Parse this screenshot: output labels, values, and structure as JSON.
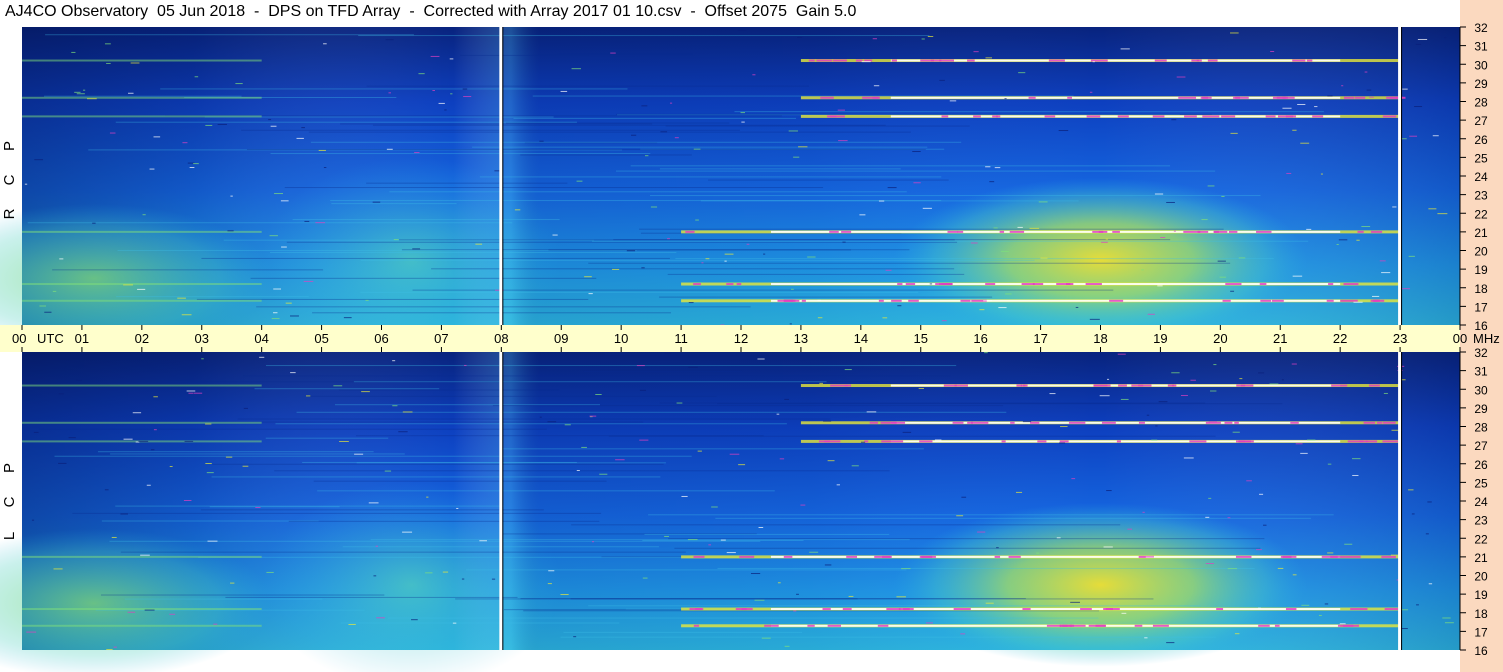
{
  "title": "AJ4CO Observatory  05 Jun 2018  -  DPS on TFD Array  -  Corrected with Array 2017 01 10.csv  -  Offset 2075  Gain 5.0",
  "colors": {
    "band_bg": "#ffffcc",
    "right_strip": "#fbd9bf",
    "deep": "#0a1f7a",
    "blue": "#0a4fd8",
    "cyan": "#22b4e0",
    "green": "#7fe07a",
    "yellow": "#e8e83a",
    "white": "#ffffff",
    "magenta": "#e040c0"
  },
  "chart_data": [
    {
      "type": "heatmap",
      "panel": "top",
      "ylabel": "R C P",
      "x_unit": "UTC",
      "y_unit": "MHz",
      "xlim": [
        0,
        24
      ],
      "ylim": [
        16,
        32
      ],
      "x_ticks": [
        "00",
        "01",
        "02",
        "03",
        "04",
        "05",
        "06",
        "07",
        "08",
        "09",
        "10",
        "11",
        "12",
        "13",
        "14",
        "15",
        "16",
        "17",
        "18",
        "19",
        "20",
        "21",
        "22",
        "23",
        "00"
      ],
      "y_ticks": [
        "32",
        "31",
        "30",
        "29",
        "28",
        "27",
        "26",
        "25",
        "24",
        "23",
        "22",
        "21",
        "20",
        "19",
        "18",
        "17",
        "16"
      ],
      "marker_times": [
        8,
        23
      ],
      "strong_bands_mhz": [
        27.2,
        28.2,
        30.2,
        18.2,
        17.3,
        21.0
      ],
      "peak_region": {
        "x": [
          16.5,
          19.5
        ],
        "y": [
          17.5,
          21.5
        ]
      }
    },
    {
      "type": "heatmap",
      "panel": "bottom",
      "ylabel": "L C P",
      "x_unit": "UTC",
      "y_unit": "MHz",
      "xlim": [
        0,
        24
      ],
      "ylim": [
        16,
        32
      ],
      "x_ticks": [
        "00",
        "01",
        "02",
        "03",
        "04",
        "05",
        "06",
        "07",
        "08",
        "09",
        "10",
        "11",
        "12",
        "13",
        "14",
        "15",
        "16",
        "17",
        "18",
        "19",
        "20",
        "21",
        "22",
        "23",
        "00"
      ],
      "y_ticks": [
        "32",
        "31",
        "30",
        "29",
        "28",
        "27",
        "26",
        "25",
        "24",
        "23",
        "22",
        "21",
        "20",
        "19",
        "18",
        "17",
        "16"
      ],
      "marker_times": [
        8,
        23
      ],
      "strong_bands_mhz": [
        27.2,
        28.2,
        30.2,
        18.2,
        17.3,
        21.0
      ],
      "peak_region": {
        "x": [
          16.5,
          19.5
        ],
        "y": [
          17.5,
          21.5
        ]
      }
    }
  ],
  "axis": {
    "utc_label": "UTC",
    "mhz_label": "MHz"
  }
}
